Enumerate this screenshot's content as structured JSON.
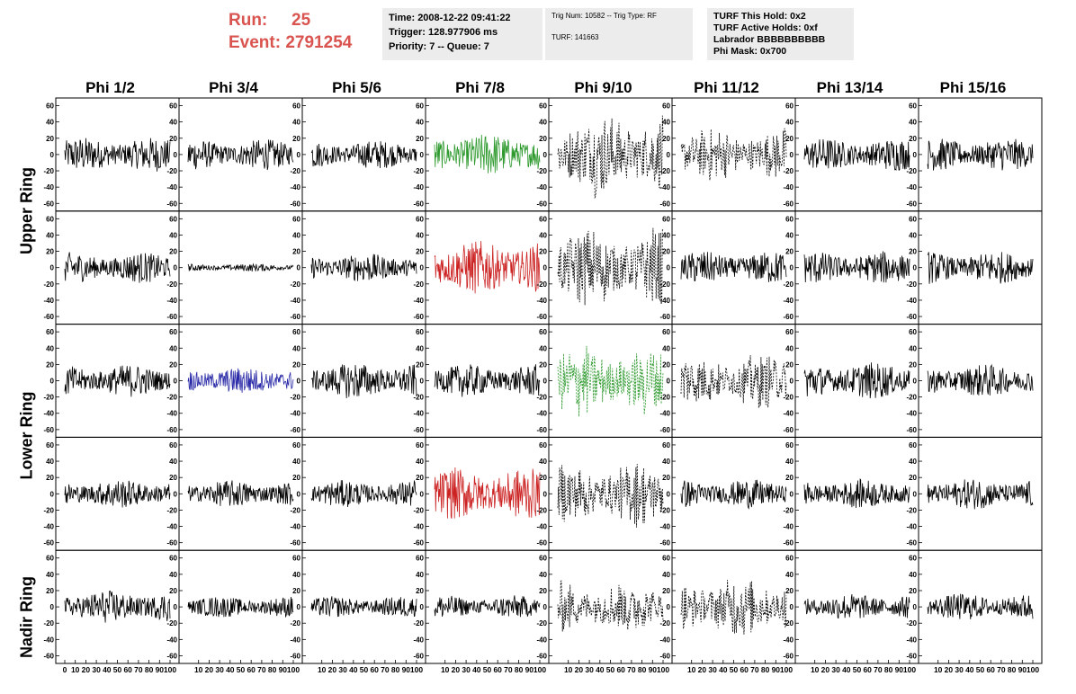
{
  "header": {
    "run_label": "Run:",
    "run_value": "25",
    "event_label": "Event:",
    "event_value": "2791254"
  },
  "time_panel": {
    "time": "Time: 2008-12-22 09:41:22",
    "trigger": "Trigger: 128.977906 ms",
    "priority": "Priority: 7 -- Queue: 7"
  },
  "trig_panel": {
    "trig_line": "Trig Num: 10582 -- Trig Type: RF",
    "turf_line": "TURF: 141663"
  },
  "turf_panel": {
    "this_hold": "TURF This Hold: 0x2",
    "active_holds": "TURF Active Holds: 0xf",
    "labrador": "Labrador BBBBBBBBBB",
    "phi_mask": "Phi Mask: 0x700"
  },
  "chart_data": {
    "type": "line",
    "columns": [
      "Phi 1/2",
      "Phi 3/4",
      "Phi 5/6",
      "Phi 7/8",
      "Phi 9/10",
      "Phi 11/12",
      "Phi 13/14",
      "Phi 15/16"
    ],
    "rows": [
      "Upper Ring",
      "Upper Ring",
      "Lower Ring",
      "Lower Ring",
      "Nadir Ring"
    ],
    "ring_labels": [
      "Upper Ring",
      "Lower Ring",
      "Nadir Ring"
    ],
    "xlim": [
      0,
      100
    ],
    "ylim": [
      -65,
      65
    ],
    "y_ticks": [
      -60,
      -40,
      -20,
      0,
      20,
      40,
      60
    ],
    "x_ticks": [
      0,
      10,
      20,
      30,
      40,
      50,
      60,
      70,
      80,
      90,
      100
    ],
    "colors": {
      "black": "#000000",
      "green": "#2e9a2e",
      "red": "#cc2222",
      "blue": "#2a2aa8"
    },
    "cells": [
      [
        {
          "color": "black",
          "amp": 18,
          "style": "solid"
        },
        {
          "color": "black",
          "amp": 16,
          "style": "solid"
        },
        {
          "color": "black",
          "amp": 15,
          "style": "solid"
        },
        {
          "color": "green",
          "amp": 22,
          "style": "solid"
        },
        {
          "color": "black",
          "amp": 35,
          "style": "dashed"
        },
        {
          "color": "black",
          "amp": 22,
          "style": "dashed"
        },
        {
          "color": "black",
          "amp": 17,
          "style": "solid"
        },
        {
          "color": "black",
          "amp": 17,
          "style": "solid"
        }
      ],
      [
        {
          "color": "black",
          "amp": 16,
          "style": "solid"
        },
        {
          "color": "black",
          "amp": 4,
          "style": "solid"
        },
        {
          "color": "black",
          "amp": 15,
          "style": "solid"
        },
        {
          "color": "red",
          "amp": 28,
          "style": "solid"
        },
        {
          "color": "black",
          "amp": 35,
          "style": "dashed"
        },
        {
          "color": "black",
          "amp": 17,
          "style": "solid"
        },
        {
          "color": "black",
          "amp": 17,
          "style": "solid"
        },
        {
          "color": "black",
          "amp": 17,
          "style": "solid"
        }
      ],
      [
        {
          "color": "black",
          "amp": 17,
          "style": "solid"
        },
        {
          "color": "blue",
          "amp": 14,
          "style": "solid"
        },
        {
          "color": "black",
          "amp": 19,
          "style": "solid"
        },
        {
          "color": "black",
          "amp": 17,
          "style": "solid"
        },
        {
          "color": "green",
          "amp": 30,
          "style": "dashed"
        },
        {
          "color": "black",
          "amp": 23,
          "style": "dashed"
        },
        {
          "color": "black",
          "amp": 19,
          "style": "solid"
        },
        {
          "color": "black",
          "amp": 17,
          "style": "solid"
        }
      ],
      [
        {
          "color": "black",
          "amp": 15,
          "style": "solid"
        },
        {
          "color": "black",
          "amp": 14,
          "style": "solid"
        },
        {
          "color": "black",
          "amp": 14,
          "style": "solid"
        },
        {
          "color": "red",
          "amp": 27,
          "style": "solid"
        },
        {
          "color": "black",
          "amp": 27,
          "style": "dashed"
        },
        {
          "color": "black",
          "amp": 15,
          "style": "solid"
        },
        {
          "color": "black",
          "amp": 15,
          "style": "solid"
        },
        {
          "color": "black",
          "amp": 16,
          "style": "solid"
        }
      ],
      [
        {
          "color": "black",
          "amp": 17,
          "style": "solid"
        },
        {
          "color": "black",
          "amp": 11,
          "style": "solid"
        },
        {
          "color": "black",
          "amp": 11,
          "style": "solid"
        },
        {
          "color": "black",
          "amp": 12,
          "style": "solid"
        },
        {
          "color": "black",
          "amp": 22,
          "style": "dashed"
        },
        {
          "color": "black",
          "amp": 25,
          "style": "dashed"
        },
        {
          "color": "black",
          "amp": 14,
          "style": "solid"
        },
        {
          "color": "black",
          "amp": 14,
          "style": "solid"
        }
      ]
    ]
  }
}
